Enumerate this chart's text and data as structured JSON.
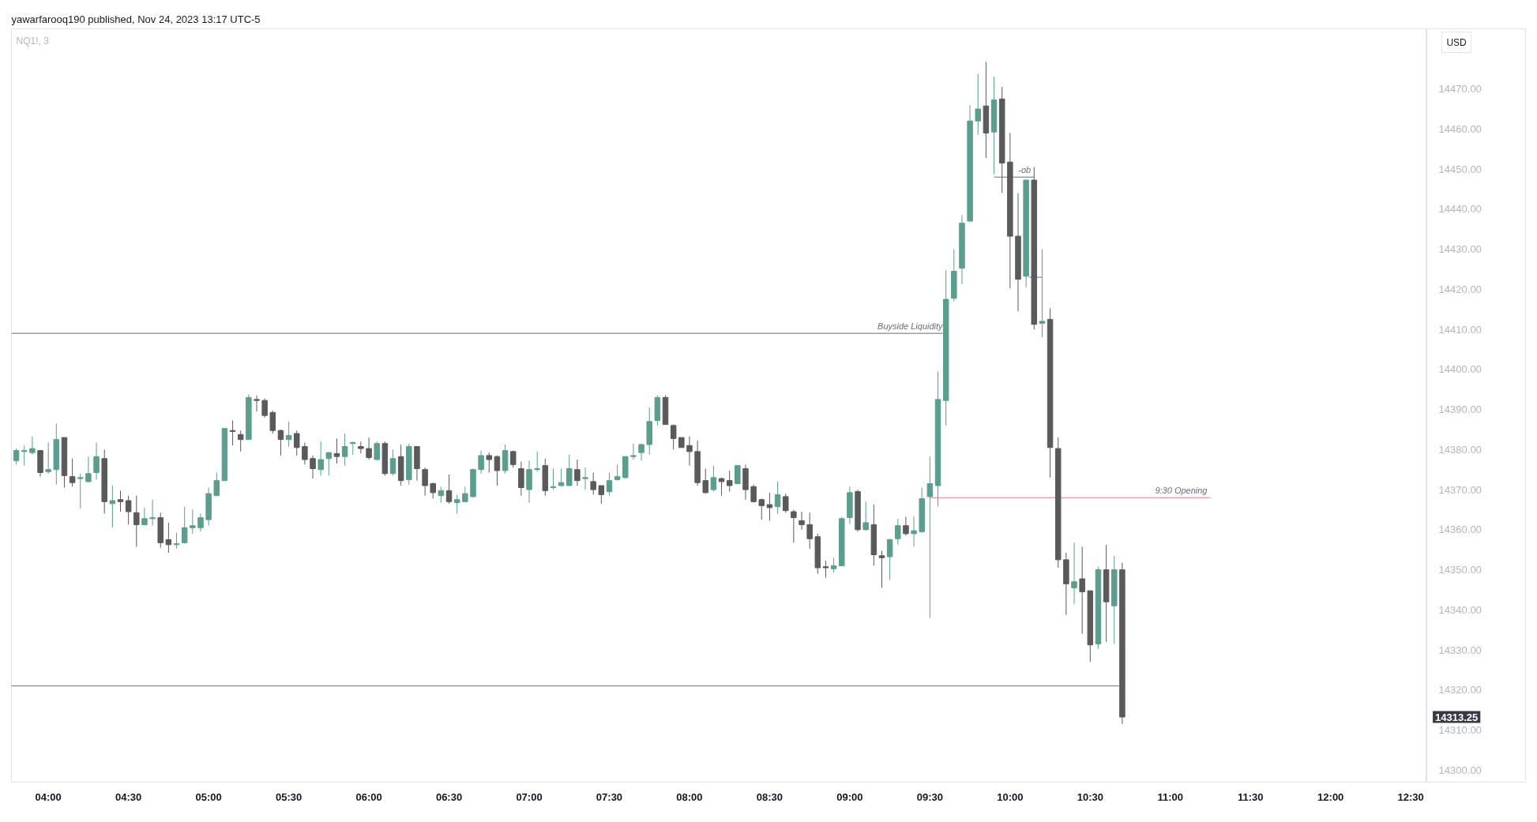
{
  "chart_data": {
    "type": "candlestick",
    "title": "yawarfarooq190 published, Nov 24, 2023 13:17 UTC-5",
    "subtitle": "NQ1!, 3",
    "x": [
      3.8,
      3.85,
      3.9,
      3.95,
      4,
      4.05,
      4.1,
      4.15,
      4.2,
      4.25,
      4.3,
      4.35,
      4.4,
      4.45,
      4.5,
      4.55,
      4.6,
      4.65,
      4.7,
      4.75,
      4.8,
      4.85,
      4.9,
      4.95,
      5,
      5.05,
      5.1,
      5.15,
      5.2,
      5.25,
      5.3,
      5.35,
      5.4,
      5.45,
      5.5,
      5.55,
      5.6,
      5.65,
      5.7,
      5.75,
      5.8,
      5.85,
      5.9,
      5.95,
      6,
      6.05,
      6.1,
      6.15,
      6.2,
      6.25,
      6.3,
      6.35,
      6.4,
      6.45,
      6.5,
      6.55,
      6.6,
      6.65,
      6.7,
      6.75,
      6.8,
      6.85,
      6.9,
      6.95,
      7,
      7.05,
      7.1,
      7.15,
      7.2,
      7.25,
      7.3,
      7.35,
      7.4,
      7.45,
      7.5,
      7.55,
      7.6,
      7.65,
      7.7,
      7.75,
      7.8,
      7.85,
      7.9,
      7.95,
      8,
      8.05,
      8.1,
      8.15,
      8.2,
      8.25,
      8.3,
      8.35,
      8.4,
      8.45,
      8.5,
      8.55,
      8.6,
      8.65,
      8.7,
      8.75,
      8.8,
      8.85,
      8.9,
      8.95,
      9,
      9.05,
      9.1,
      9.15,
      9.2,
      9.25,
      9.3,
      9.35,
      9.4,
      9.45,
      9.5,
      9.55,
      9.6,
      9.65,
      9.7,
      9.75,
      9.8,
      9.85,
      9.9,
      9.95,
      10,
      10.05,
      10.1,
      10.15,
      10.2,
      10.25,
      10.3,
      10.35,
      10.4,
      10.45,
      10.5,
      10.55,
      10.6,
      10.65,
      10.7
    ],
    "ohlc": [
      [
        14377.25,
        14380.25,
        14376.25,
        14379.75
      ],
      [
        14379.5,
        14381,
        14376,
        14379.75
      ],
      [
        14379.25,
        14383.25,
        14378.75,
        14380.25
      ],
      [
        14379.75,
        14379.75,
        14373.25,
        14374.25
      ],
      [
        14374.5,
        14381.75,
        14374,
        14375
      ],
      [
        14375,
        14386.5,
        14371.25,
        14382.5
      ],
      [
        14383,
        14383,
        14370.5,
        14373.5
      ],
      [
        14373.25,
        14377.75,
        14370.75,
        14371.75
      ],
      [
        14372.75,
        14374,
        14365.25,
        14373
      ],
      [
        14372,
        14378.25,
        14371.75,
        14374
      ],
      [
        14374.25,
        14381.75,
        14372.5,
        14378.25
      ],
      [
        14377.75,
        14380,
        14364,
        14367
      ],
      [
        14366.5,
        14371,
        14360.5,
        14367.25
      ],
      [
        14367.5,
        14369.75,
        14364.5,
        14367
      ],
      [
        14367.25,
        14368.5,
        14361.25,
        14364.5
      ],
      [
        14364.25,
        14368.5,
        14355.75,
        14361.25
      ],
      [
        14361.25,
        14365.5,
        14361.25,
        14362.75
      ],
      [
        14362.75,
        14367.5,
        14361,
        14363
      ],
      [
        14363,
        14364.25,
        14355.5,
        14356.75
      ],
      [
        14357.5,
        14361.75,
        14354.25,
        14356.25
      ],
      [
        14356.25,
        14359.25,
        14355.25,
        14356.5
      ],
      [
        14356.75,
        14365.75,
        14356.5,
        14360.5
      ],
      [
        14360.5,
        14365,
        14359,
        14361
      ],
      [
        14360.5,
        14364,
        14359.5,
        14363
      ],
      [
        14362.5,
        14370.5,
        14361,
        14369
      ],
      [
        14368.5,
        14374.25,
        14368.5,
        14372.25
      ],
      [
        14372.25,
        14385.25,
        14372.25,
        14385.25
      ],
      [
        14384.75,
        14387.25,
        14381,
        14384.5
      ],
      [
        14383.75,
        14384.75,
        14379.5,
        14382.5
      ],
      [
        14382.5,
        14393.75,
        14382.5,
        14393
      ],
      [
        14392.5,
        14393.5,
        14389.5,
        14392.25
      ],
      [
        14392.25,
        14392.75,
        14388,
        14388.5
      ],
      [
        14389.25,
        14389.75,
        14384,
        14384.75
      ],
      [
        14384.75,
        14385,
        14378.5,
        14382.5
      ],
      [
        14382.5,
        14387,
        14380.75,
        14383.5
      ],
      [
        14384,
        14384.75,
        14378.5,
        14380.5
      ],
      [
        14380.75,
        14381.75,
        14376.25,
        14377.5
      ],
      [
        14377.75,
        14378.5,
        14372.75,
        14375.25
      ],
      [
        14375,
        14382,
        14373.5,
        14377.5
      ],
      [
        14377.75,
        14379.25,
        14373.5,
        14379.25
      ],
      [
        14379,
        14382.75,
        14376.5,
        14378.25
      ],
      [
        14378.25,
        14384,
        14376,
        14380.75
      ],
      [
        14381.5,
        14382,
        14378.75,
        14381.75
      ],
      [
        14380.75,
        14382,
        14379,
        14380.25
      ],
      [
        14380.25,
        14383,
        14377.5,
        14378
      ],
      [
        14377.5,
        14382,
        14377.25,
        14381.5
      ],
      [
        14381.5,
        14382,
        14373.5,
        14374
      ],
      [
        14374,
        14380,
        14373.5,
        14377.75
      ],
      [
        14378.25,
        14381.25,
        14371,
        14372.25
      ],
      [
        14372.5,
        14381.5,
        14371.25,
        14380.75
      ],
      [
        14380.75,
        14380.75,
        14372.25,
        14375.25
      ],
      [
        14375,
        14375.5,
        14368.5,
        14371
      ],
      [
        14371.5,
        14371.75,
        14367.75,
        14369.25
      ],
      [
        14368.5,
        14370.75,
        14366.75,
        14369.75
      ],
      [
        14369.75,
        14373.75,
        14366.5,
        14367
      ],
      [
        14366.75,
        14368.75,
        14364,
        14367.5
      ],
      [
        14367,
        14370.75,
        14367,
        14369
      ],
      [
        14368.25,
        14375.25,
        14368,
        14375
      ],
      [
        14375,
        14379.75,
        14374,
        14378.5
      ],
      [
        14378.5,
        14379.25,
        14374.25,
        14377.5
      ],
      [
        14378.25,
        14378.5,
        14371,
        14374.75
      ],
      [
        14374.75,
        14381.25,
        14374,
        14379.75
      ],
      [
        14379.5,
        14379.75,
        14375.5,
        14376.25
      ],
      [
        14375.25,
        14377,
        14368.5,
        14370.5
      ],
      [
        14370,
        14377.25,
        14366.75,
        14375
      ],
      [
        14375,
        14379.5,
        14374.5,
        14375.25
      ],
      [
        14376,
        14377.75,
        14368.5,
        14369.75
      ],
      [
        14370.5,
        14375.25,
        14370,
        14370.75
      ],
      [
        14371,
        14375.25,
        14370.75,
        14371.75
      ],
      [
        14371,
        14378.75,
        14371,
        14375.25
      ],
      [
        14375,
        14377.5,
        14371,
        14372.25
      ],
      [
        14372.75,
        14375.5,
        14370,
        14373
      ],
      [
        14372,
        14374.25,
        14368.75,
        14370
      ],
      [
        14371,
        14371,
        14366.5,
        14368.75
      ],
      [
        14369.5,
        14374.25,
        14368.5,
        14372.25
      ],
      [
        14372.5,
        14376.25,
        14372.25,
        14373.25
      ],
      [
        14373,
        14378.25,
        14372.75,
        14378.25
      ],
      [
        14378.25,
        14381.5,
        14377.5,
        14378.5
      ],
      [
        14379.25,
        14381.5,
        14377.25,
        14381.25
      ],
      [
        14381.25,
        14390.5,
        14378.75,
        14387
      ],
      [
        14387.25,
        14393.5,
        14386,
        14393
      ],
      [
        14393,
        14393.5,
        14386.25,
        14386.25
      ],
      [
        14386,
        14386.25,
        14380,
        14382.75
      ],
      [
        14383,
        14383,
        14380.5,
        14380.5
      ],
      [
        14381,
        14383.25,
        14376,
        14379.5
      ],
      [
        14379.5,
        14382.25,
        14371,
        14371.75
      ],
      [
        14372.25,
        14375.25,
        14369,
        14369.25
      ],
      [
        14370,
        14376,
        14369.5,
        14373
      ],
      [
        14372.75,
        14373,
        14368.5,
        14372
      ],
      [
        14372.25,
        14374.75,
        14369.5,
        14371
      ],
      [
        14371.5,
        14376,
        14371.5,
        14376
      ],
      [
        14375.25,
        14376.25,
        14367.5,
        14370
      ],
      [
        14370.75,
        14371.25,
        14366.75,
        14367
      ],
      [
        14367.5,
        14367.75,
        14362.5,
        14366
      ],
      [
        14366.25,
        14369.25,
        14362.25,
        14365.5
      ],
      [
        14365.75,
        14372,
        14364,
        14368.75
      ],
      [
        14368.25,
        14369,
        14364.25,
        14364.75
      ],
      [
        14364.5,
        14365,
        14356.75,
        14363
      ],
      [
        14362.25,
        14364.5,
        14360,
        14361.25
      ],
      [
        14361.25,
        14364.25,
        14355.25,
        14357.75
      ],
      [
        14358.25,
        14359,
        14349,
        14350.5
      ],
      [
        14350.75,
        14352.25,
        14348,
        14350.5
      ],
      [
        14350.25,
        14353,
        14349.25,
        14351
      ],
      [
        14351,
        14363.25,
        14351,
        14362.75
      ],
      [
        14363,
        14370.75,
        14361.5,
        14369.25
      ],
      [
        14369.5,
        14370,
        14359.5,
        14360
      ],
      [
        14360,
        14367,
        14359.75,
        14361.75
      ],
      [
        14361.25,
        14366.25,
        14351,
        14353.75
      ],
      [
        14353.5,
        14354.75,
        14345.5,
        14353
      ],
      [
        14353.25,
        14357.75,
        14347.5,
        14357.5
      ],
      [
        14357.75,
        14362.75,
        14356.25,
        14361
      ],
      [
        14361,
        14363.25,
        14358.5,
        14359
      ],
      [
        14359,
        14363.25,
        14355.75,
        14359.75
      ],
      [
        14359.5,
        14370.5,
        14359.25,
        14367.75
      ],
      [
        14368.25,
        14378.25,
        14338,
        14371.5
      ],
      [
        14371,
        14399.5,
        14365.75,
        14392.5
      ],
      [
        14392.25,
        14424.75,
        14386,
        14417.5
      ],
      [
        14417.75,
        14430,
        14417,
        14424.5
      ],
      [
        14425.25,
        14438.5,
        14421.25,
        14436.5
      ],
      [
        14437,
        14466,
        14437,
        14462
      ],
      [
        14462,
        14473.75,
        14458.5,
        14465
      ],
      [
        14465.75,
        14476.75,
        14452.75,
        14459
      ],
      [
        14459.25,
        14473,
        14448.75,
        14467.25
      ],
      [
        14467.5,
        14470.5,
        14444,
        14451.5
      ],
      [
        14451.75,
        14459,
        14420.25,
        14433.25
      ],
      [
        14433.25,
        14444,
        14414.5,
        14422.5
      ],
      [
        14423.25,
        14447.25,
        14420.5,
        14447.25
      ],
      [
        14447.25,
        14450.5,
        14410,
        14411.25
      ],
      [
        14411.5,
        14430,
        14408,
        14412
      ],
      [
        14412.5,
        14415.25,
        14373,
        14380.5
      ],
      [
        14380.25,
        14383,
        14350.5,
        14352.5
      ],
      [
        14352.5,
        14354.25,
        14338.75,
        14346.5
      ],
      [
        14345.5,
        14356.75,
        14341.5,
        14347
      ],
      [
        14347.75,
        14355.75,
        14334,
        14344.5
      ],
      [
        14344.75,
        14344.75,
        14327,
        14331.25
      ],
      [
        14331.5,
        14350.75,
        14330.25,
        14350
      ],
      [
        14350,
        14356.25,
        14332,
        14342
      ],
      [
        14341,
        14353.5,
        14331.5,
        14350
      ],
      [
        14350,
        14351.75,
        14311.5,
        14313.25
      ]
    ],
    "colors": [
      "#5b9e8f",
      "#5b9e8f",
      "#5b9e8f",
      "#5a5a5a",
      "#5b9e8f",
      "#5b9e8f",
      "#5a5a5a",
      "#5a5a5a",
      "#5b9e8f",
      "#5b9e8f",
      "#5b9e8f",
      "#5a5a5a",
      "#5b9e8f",
      "#5a5a5a",
      "#5a5a5a",
      "#5a5a5a",
      "#5b9e8f",
      "#5b9e8f",
      "#5a5a5a",
      "#5a5a5a",
      "#5b9e8f",
      "#5b9e8f",
      "#5b9e8f",
      "#5b9e8f",
      "#5b9e8f",
      "#5b9e8f",
      "#5b9e8f",
      "#5a5a5a",
      "#5a5a5a",
      "#5b9e8f",
      "#5a5a5a",
      "#5a5a5a",
      "#5a5a5a",
      "#5a5a5a",
      "#5b9e8f",
      "#5a5a5a",
      "#5a5a5a",
      "#5a5a5a",
      "#5b9e8f",
      "#5b9e8f",
      "#5a5a5a",
      "#5b9e8f",
      "#5b9e8f",
      "#5a5a5a",
      "#5a5a5a",
      "#5b9e8f",
      "#5a5a5a",
      "#5b9e8f",
      "#5a5a5a",
      "#5b9e8f",
      "#5a5a5a",
      "#5a5a5a",
      "#5a5a5a",
      "#5b9e8f",
      "#5a5a5a",
      "#5b9e8f",
      "#5b9e8f",
      "#5b9e8f",
      "#5b9e8f",
      "#5a5a5a",
      "#5a5a5a",
      "#5b9e8f",
      "#5a5a5a",
      "#5a5a5a",
      "#5b9e8f",
      "#5b9e8f",
      "#5a5a5a",
      "#5b9e8f",
      "#5b9e8f",
      "#5b9e8f",
      "#5a5a5a",
      "#5b9e8f",
      "#5a5a5a",
      "#5a5a5a",
      "#5b9e8f",
      "#5b9e8f",
      "#5b9e8f",
      "#5b9e8f",
      "#5b9e8f",
      "#5b9e8f",
      "#5b9e8f",
      "#5a5a5a",
      "#5a5a5a",
      "#5a5a5a",
      "#5a5a5a",
      "#5a5a5a",
      "#5a5a5a",
      "#5b9e8f",
      "#5a5a5a",
      "#5a5a5a",
      "#5b9e8f",
      "#5a5a5a",
      "#5a5a5a",
      "#5a5a5a",
      "#5a5a5a",
      "#5b9e8f",
      "#5a5a5a",
      "#5a5a5a",
      "#5a5a5a",
      "#5a5a5a",
      "#5a5a5a",
      "#5a5a5a",
      "#5b9e8f",
      "#5b9e8f",
      "#5b9e8f",
      "#5a5a5a",
      "#5b9e8f",
      "#5a5a5a",
      "#5a5a5a",
      "#5b9e8f",
      "#5b9e8f",
      "#5a5a5a",
      "#5b9e8f",
      "#5b9e8f",
      "#5b9e8f",
      "#5b9e8f",
      "#5b9e8f",
      "#5b9e8f",
      "#5b9e8f",
      "#5b9e8f",
      "#5b9e8f",
      "#5a5a5a",
      "#5b9e8f",
      "#5a5a5a",
      "#5a5a5a",
      "#5a5a5a",
      "#5b9e8f",
      "#5a5a5a",
      "#5b9e8f",
      "#5a5a5a",
      "#5a5a5a",
      "#5a5a5a",
      "#5b9e8f",
      "#5a5a5a",
      "#5a5a5a",
      "#5b9e8f",
      "#5a5a5a",
      "#5b9e8f",
      "#5a5a5a"
    ],
    "series": [
      {
        "type": "line",
        "x": [
          3.77,
          9.58
        ],
        "values": [
          14409,
          14409
        ],
        "color": "#6b6e78"
      },
      {
        "type": "line",
        "x": [
          9.5,
          11.25
        ],
        "values": [
          14368,
          14368
        ],
        "color": "#e0808a"
      },
      {
        "type": "line",
        "x": [
          9.9,
          10.15
        ],
        "values": [
          14448,
          14448
        ],
        "color": "#6b6e78"
      },
      {
        "type": "line",
        "x": [
          10.12,
          10.2
        ],
        "values": [
          14423,
          14423
        ],
        "color": "#6b6e78"
      },
      {
        "type": "line",
        "x": [
          3.77,
          10.68
        ],
        "values": [
          14321,
          14321
        ],
        "color": "#6b6e78"
      }
    ],
    "annotations": [
      {
        "text": "Buyside Liquidity",
        "x": 9.58,
        "y": 14409
      },
      {
        "text": "9:30 Opening",
        "x": 11.23,
        "y": 14368
      },
      {
        "text": "-ob",
        "x": 10.13,
        "y": 14448
      },
      "14313.25",
      "USD"
    ],
    "xlim": [
      3.77,
      12.6
    ],
    "ylim": [
      14297,
      14485
    ],
    "xticks": [
      {
        "value": 4,
        "label": "04:00"
      },
      {
        "value": 4.5,
        "label": "04:30"
      },
      {
        "value": 5,
        "label": "05:00"
      },
      {
        "value": 5.5,
        "label": "05:30"
      },
      {
        "value": 6,
        "label": "06:00"
      },
      {
        "value": 6.5,
        "label": "06:30"
      },
      {
        "value": 7,
        "label": "07:00"
      },
      {
        "value": 7.5,
        "label": "07:30"
      },
      {
        "value": 8,
        "label": "08:00"
      },
      {
        "value": 8.5,
        "label": "08:30"
      },
      {
        "value": 9,
        "label": "09:00"
      },
      {
        "value": 9.5,
        "label": "09:30"
      },
      {
        "value": 10,
        "label": "10:00"
      },
      {
        "value": 10.5,
        "label": "10:30"
      },
      {
        "value": 11,
        "label": "11:00"
      },
      {
        "value": 11.5,
        "label": "11:30"
      },
      {
        "value": 12,
        "label": "12:00"
      },
      {
        "value": 12.5,
        "label": "12:30"
      }
    ],
    "yticks": [
      {
        "value": 14300,
        "label": "14300.00"
      },
      {
        "value": 14310,
        "label": "14310.00"
      },
      {
        "value": 14320,
        "label": "14320.00"
      },
      {
        "value": 14330,
        "label": "14330.00"
      },
      {
        "value": 14340,
        "label": "14340.00"
      },
      {
        "value": 14350,
        "label": "14350.00"
      },
      {
        "value": 14360,
        "label": "14360.00"
      },
      {
        "value": 14370,
        "label": "14370.00"
      },
      {
        "value": 14380,
        "label": "14380.00"
      },
      {
        "value": 14390,
        "label": "14390.00"
      },
      {
        "value": 14400,
        "label": "14400.00"
      },
      {
        "value": 14410,
        "label": "14410.00"
      },
      {
        "value": 14420,
        "label": "14420.00"
      },
      {
        "value": 14430,
        "label": "14430.00"
      },
      {
        "value": 14440,
        "label": "14440.00"
      },
      {
        "value": 14450,
        "label": "14450.00"
      },
      {
        "value": 14460,
        "label": "14460.00"
      },
      {
        "value": 14470,
        "label": "14470.00"
      }
    ],
    "grid": false
  }
}
